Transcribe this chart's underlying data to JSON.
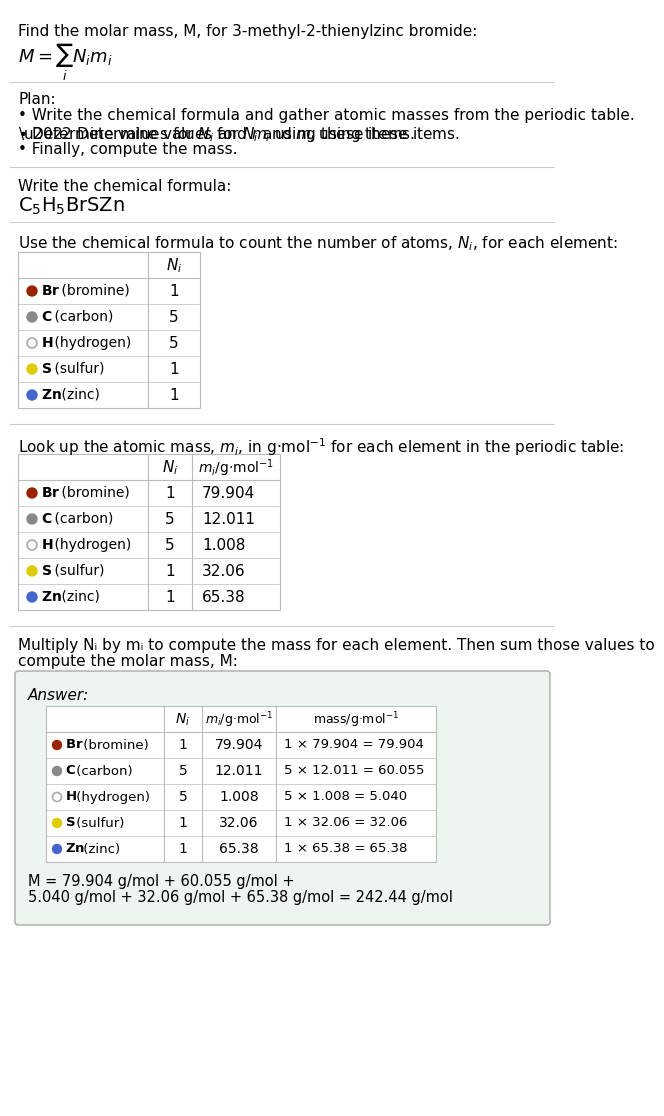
{
  "title_line1": "Find the molar mass, M, for 3-methyl-2-thienylzinc bromide:",
  "plan_header": "Plan:",
  "plan_bullets": [
    "• Write the chemical formula and gather atomic masses from the periodic table.",
    "• Determine values for Nᵢ and mᵢ using these items.",
    "• Finally, compute the mass."
  ],
  "chem_formula_label": "Write the chemical formula:",
  "table1_header": "Use the chemical formula to count the number of atoms, Nᵢ, for each element:",
  "table2_header_a": "Look up the atomic mass, mᵢ, in g·mol⁻¹ for each element in the periodic table:",
  "table3_header_a": "Multiply Nᵢ by mᵢ to compute the mass for each element. Then sum those values to",
  "table3_header_b": "compute the molar mass, M:",
  "elements": [
    "Br (bromine)",
    "C (carbon)",
    "H (hydrogen)",
    "S (sulfur)",
    "Zn (zinc)"
  ],
  "element_symbols": [
    "Br",
    "C",
    "H",
    "S",
    "Zn"
  ],
  "element_names": [
    "(bromine)",
    "(carbon)",
    "(hydrogen)",
    "(sulfur)",
    "(zinc)"
  ],
  "dot_colors": [
    "#992200",
    "#888888",
    "#FFFFFF",
    "#DDCC00",
    "#4466CC"
  ],
  "dot_filled": [
    true,
    true,
    false,
    true,
    true
  ],
  "dot_edge_colors": [
    "#992200",
    "#888888",
    "#AAAAAA",
    "#DDCC00",
    "#4466CC"
  ],
  "Ni": [
    1,
    5,
    5,
    1,
    1
  ],
  "mi": [
    "79.904",
    "12.011",
    "1.008",
    "32.06",
    "65.38"
  ],
  "mass_str": [
    "1 × 79.904 = 79.904",
    "5 × 12.011 = 60.055",
    "5 × 1.008 = 5.040",
    "1 × 32.06 = 32.06",
    "1 × 65.38 = 65.38"
  ],
  "final_eq_line1": "M = 79.904 g/mol + 60.055 g/mol +",
  "final_eq_line2": "5.040 g/mol + 32.06 g/mol + 65.38 g/mol = 242.44 g/mol",
  "bg_color": "#FFFFFF",
  "text_color": "#000000",
  "table_line_color": "#BBBBBB",
  "sep_line_color": "#CCCCCC",
  "answer_box_bg": "#EEF5EE",
  "answer_box_border": "#AAAAAA"
}
